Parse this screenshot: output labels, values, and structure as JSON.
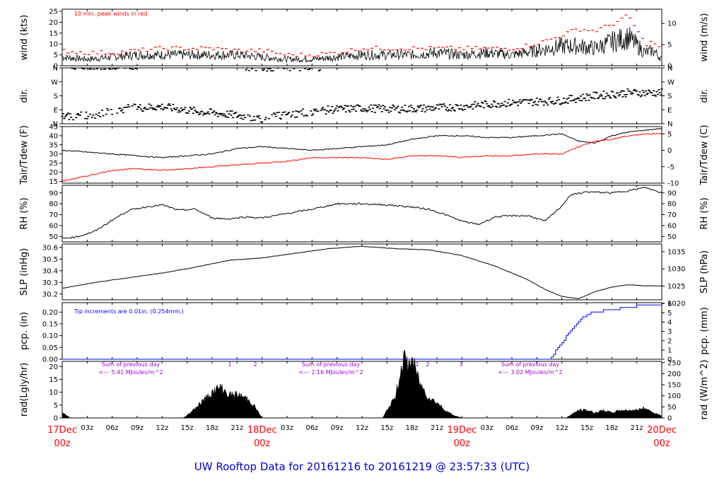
{
  "title": "UW Rooftop Data for 20161216  to  20161219 @ 23:57:33  (UTC)",
  "colors": {
    "primary": "#000000",
    "peak": "#ff0000",
    "dew": "#ff0000",
    "precip": "#0000ff",
    "solar_note": "#9900cc",
    "title": "#0000cc"
  },
  "x_axis": {
    "hours_total": 72,
    "hour_ticks": [
      "03z",
      "06z",
      "09z",
      "12z",
      "15z",
      "18z",
      "21z"
    ],
    "days": [
      {
        "hour": 0,
        "label": "17Dec",
        "sub": "00z"
      },
      {
        "hour": 24,
        "label": "18Dec",
        "sub": "00z"
      },
      {
        "hour": 48,
        "label": "19Dec",
        "sub": "00z"
      },
      {
        "hour": 72,
        "label": "20Dec",
        "sub": "00z"
      }
    ]
  },
  "panels": {
    "wind": {
      "left_label": "wind (kts)",
      "right_label": "wind (m/s)",
      "left_ticks": [
        "0",
        "5",
        "10",
        "15",
        "20",
        "25"
      ],
      "right_ticks": [
        "0",
        "5",
        "10"
      ],
      "note": "10 min. peak winds in red"
    },
    "dir": {
      "left_label": "dir.",
      "right_label": "dir.",
      "ticks": [
        "N",
        "E",
        "S",
        "W",
        "N"
      ]
    },
    "temp": {
      "left_label": "Tair/Tdew (F)",
      "right_label": "Tair/Tdew (C)",
      "left_ticks": [
        "15",
        "20",
        "25",
        "30",
        "35",
        "40",
        "45"
      ],
      "right_ticks": [
        "-10",
        "-5",
        "0",
        "5"
      ]
    },
    "rh": {
      "left_label": "RH (%)",
      "right_label": "RH (%)",
      "ticks": [
        "50",
        "60",
        "70",
        "80",
        "90"
      ]
    },
    "slp": {
      "left_label": "SLP (inHg)",
      "right_label": "SLP (hPa)",
      "left_ticks": [
        "30.2",
        "30.3",
        "30.4",
        "30.5",
        "30.6"
      ],
      "right_ticks": [
        "1020",
        "1025",
        "1030",
        "1035"
      ]
    },
    "pcp": {
      "left_label": "pcp. (in)",
      "right_label": "pcp. (mm)",
      "left_ticks": [
        "0.00",
        "0.05",
        "0.10",
        "0.15",
        "0.20"
      ],
      "right_ticks": [
        "0",
        "1",
        "2",
        "3",
        "4",
        "5",
        "6"
      ],
      "note": "Tip increments are 0.01in. (0.254mm.)"
    },
    "rad": {
      "left_label": "rad(Lgly/hr)",
      "right_label": "rad (W/m^2)",
      "left_ticks": [
        "0",
        "5",
        "10",
        "15",
        "20"
      ],
      "right_ticks": [
        "0",
        "50",
        "100",
        "150",
        "200",
        "250"
      ],
      "day_notes": [
        {
          "line1": "Sum of previous day",
          "line2": "<--- 5.41 MJoules/m^2"
        },
        {
          "line1": "Sum of previous day",
          "line2": "<--- 2.16 MJoules/m^2"
        },
        {
          "line1": "Sum of previous day",
          "line2": "<--- 3.02 MJoules/m^2"
        }
      ],
      "markers": [
        "1",
        "2",
        "1",
        "2",
        "3"
      ]
    }
  },
  "chart_data": [
    {
      "type": "line",
      "title": "",
      "ylabel": "wind (kts)",
      "ylim": [
        0,
        26
      ],
      "series": [
        {
          "x": [
            0,
            3,
            6,
            9,
            12,
            15,
            18,
            21,
            24,
            27,
            30,
            33,
            36,
            39,
            42,
            45,
            48,
            51,
            54,
            57,
            60,
            62,
            64,
            66,
            68,
            70,
            71,
            72
          ],
          "values": [
            4,
            3,
            4,
            5,
            5,
            5,
            5,
            5,
            4,
            3,
            3,
            4,
            5,
            5,
            5,
            6,
            5,
            6,
            5,
            7,
            9,
            9,
            8,
            11,
            13,
            6,
            7,
            3
          ]
        },
        {
          "name": "10 min. peak winds in red",
          "x": [
            0,
            3,
            6,
            9,
            12,
            15,
            18,
            21,
            24,
            27,
            30,
            33,
            36,
            39,
            42,
            45,
            48,
            51,
            54,
            57,
            60,
            62,
            64,
            66,
            68,
            70,
            71,
            72
          ],
          "values": [
            7,
            6,
            6,
            7,
            8,
            8,
            8,
            7,
            7,
            5,
            5,
            6,
            8,
            8,
            8,
            8,
            8,
            8,
            8,
            10,
            14,
            17,
            16,
            19,
            23,
            10,
            11,
            7
          ]
        }
      ]
    },
    {
      "type": "scatter",
      "ylabel": "dir.",
      "y_categories": [
        "N",
        "E",
        "S",
        "W",
        "N"
      ],
      "ylim": [
        0,
        360
      ],
      "x": [
        0,
        4,
        8,
        12,
        16,
        20,
        24,
        28,
        32,
        36,
        40,
        44,
        48,
        52,
        56,
        60,
        64,
        68,
        72
      ],
      "values": [
        45,
        60,
        100,
        110,
        80,
        60,
        35,
        65,
        90,
        100,
        95,
        100,
        110,
        130,
        140,
        150,
        180,
        200,
        200
      ]
    },
    {
      "type": "line",
      "ylabel": "Tair/Tdew (F)",
      "ylim": [
        14,
        45
      ],
      "x": [
        0,
        3,
        6,
        9,
        12,
        15,
        18,
        21,
        24,
        27,
        30,
        33,
        36,
        39,
        42,
        45,
        48,
        51,
        54,
        57,
        60,
        62,
        64,
        66,
        68,
        70,
        72
      ],
      "series": [
        {
          "values": [
            32,
            31,
            30,
            29,
            28,
            29,
            30,
            33,
            34,
            33,
            32,
            33,
            34,
            35,
            38,
            40,
            40,
            39,
            39,
            40,
            41,
            37,
            36,
            40,
            42,
            43,
            44
          ]
        },
        {
          "values": [
            15,
            18,
            21,
            22,
            21,
            22,
            23,
            24,
            25,
            26,
            28,
            28,
            28,
            27,
            29,
            29,
            28,
            29,
            29,
            30,
            30,
            34,
            37,
            38,
            40,
            41,
            41
          ]
        }
      ]
    },
    {
      "type": "line",
      "ylabel": "RH (%)",
      "ylim": [
        45,
        97
      ],
      "x": [
        0,
        2,
        4,
        6,
        8,
        10,
        12,
        14,
        16,
        18,
        20,
        22,
        24,
        27,
        30,
        33,
        36,
        39,
        42,
        44,
        46,
        48,
        50,
        52,
        54,
        56,
        58,
        60,
        61,
        63,
        66,
        68,
        70,
        72
      ],
      "values": [
        48,
        50,
        55,
        65,
        74,
        77,
        79,
        74,
        75,
        67,
        66,
        68,
        67,
        71,
        75,
        80,
        80,
        79,
        77,
        75,
        70,
        64,
        61,
        68,
        69,
        69,
        64,
        78,
        88,
        91,
        90,
        92,
        95,
        90
      ]
    },
    {
      "type": "line",
      "ylabel": "SLP (inHg)",
      "ylim": [
        30.15,
        30.63
      ],
      "x": [
        0,
        4,
        8,
        12,
        16,
        20,
        24,
        28,
        32,
        36,
        40,
        44,
        48,
        52,
        56,
        58,
        60,
        62,
        64,
        66,
        68,
        70,
        72
      ],
      "values": [
        30.25,
        30.3,
        30.34,
        30.38,
        30.43,
        30.49,
        30.51,
        30.55,
        30.59,
        30.61,
        30.59,
        30.58,
        30.53,
        30.44,
        30.32,
        30.24,
        30.18,
        30.16,
        30.22,
        30.26,
        30.28,
        30.27,
        30.27
      ]
    },
    {
      "type": "line",
      "ylabel": "pcp. (in)",
      "ylim": [
        0,
        0.24
      ],
      "x": [
        0,
        58.5,
        60,
        61,
        62,
        63,
        64,
        66,
        68,
        70,
        72
      ],
      "series": [
        {
          "name": "Tip increments are 0.01in. (0.254mm.)",
          "values": [
            0,
            0,
            0.07,
            0.12,
            0.16,
            0.19,
            0.2,
            0.21,
            0.22,
            0.23,
            0.23
          ]
        }
      ]
    },
    {
      "type": "area",
      "ylabel": "rad(Lgly/hr)",
      "ylim": [
        0,
        22
      ],
      "x": [
        0,
        0.5,
        1,
        14.5,
        15,
        16,
        17,
        18,
        19,
        20,
        21,
        22,
        23,
        24,
        38.5,
        39,
        40,
        40.5,
        41,
        41.5,
        42,
        43,
        44,
        45,
        46,
        47,
        48,
        60.5,
        61,
        62,
        63,
        64,
        65,
        66,
        67,
        68,
        69,
        70,
        71,
        72
      ],
      "values": [
        2,
        1,
        0,
        0,
        1,
        4,
        7,
        10,
        12,
        9,
        9,
        8,
        5,
        0,
        0,
        3,
        8,
        16,
        24,
        20,
        23,
        13,
        8,
        6,
        3,
        1,
        0,
        0,
        1,
        3,
        3,
        2,
        3,
        2,
        3,
        3,
        3,
        4,
        2,
        1
      ]
    }
  ]
}
